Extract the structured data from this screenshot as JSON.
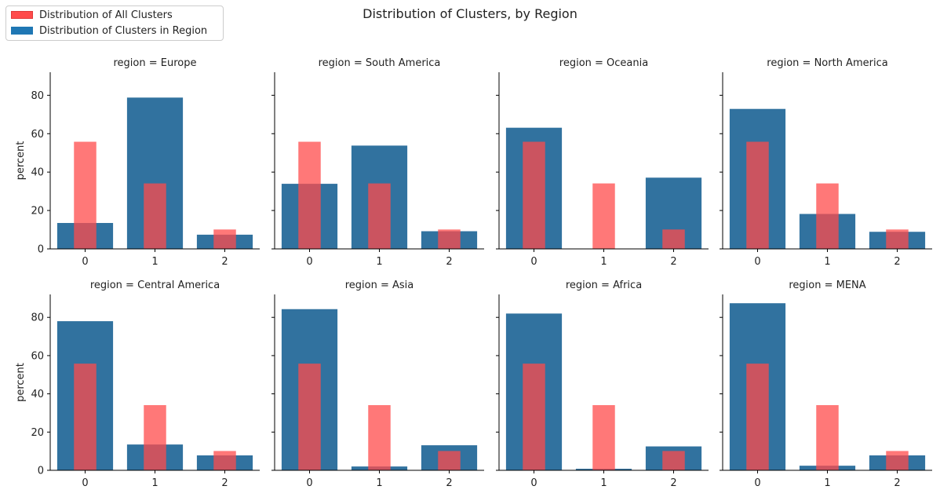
{
  "figure": {
    "title": "Distribution of Clusters, by Region"
  },
  "legend": {
    "items": [
      {
        "label": "Distribution of All Clusters",
        "color": "#ff4b4b"
      },
      {
        "label": "Distribution of Clusters in Region",
        "color": "#1f77b4"
      }
    ]
  },
  "colors": {
    "all_clusters": "#ff4b4b",
    "region_clusters": "#31729f"
  },
  "chart_data": [
    {
      "type": "bar",
      "title": "region = Europe",
      "xlabel": "",
      "ylabel": "percent",
      "categories": [
        "0",
        "1",
        "2"
      ],
      "ylim": [
        0,
        92
      ],
      "yticks": [
        0,
        20,
        40,
        60,
        80
      ],
      "series": [
        {
          "name": "Distribution of Clusters in Region",
          "values": [
            13.5,
            78.8,
            7.4
          ]
        },
        {
          "name": "Distribution of All Clusters",
          "values": [
            55.8,
            34.1,
            10.1
          ]
        }
      ]
    },
    {
      "type": "bar",
      "title": "region = South America",
      "xlabel": "",
      "ylabel": "",
      "categories": [
        "0",
        "1",
        "2"
      ],
      "ylim": [
        0,
        92
      ],
      "yticks": [
        0,
        20,
        40,
        60,
        80
      ],
      "series": [
        {
          "name": "Distribution of Clusters in Region",
          "values": [
            33.9,
            53.8,
            9.2
          ]
        },
        {
          "name": "Distribution of All Clusters",
          "values": [
            55.8,
            34.1,
            10.1
          ]
        }
      ]
    },
    {
      "type": "bar",
      "title": "region = Oceania",
      "xlabel": "",
      "ylabel": "",
      "categories": [
        "0",
        "1",
        "2"
      ],
      "ylim": [
        0,
        92
      ],
      "yticks": [
        0,
        20,
        40,
        60,
        80
      ],
      "series": [
        {
          "name": "Distribution of Clusters in Region",
          "values": [
            63.1,
            0,
            37.1
          ]
        },
        {
          "name": "Distribution of All Clusters",
          "values": [
            55.8,
            34.1,
            10.1
          ]
        }
      ]
    },
    {
      "type": "bar",
      "title": "region = North America",
      "xlabel": "",
      "ylabel": "",
      "categories": [
        "0",
        "1",
        "2"
      ],
      "ylim": [
        0,
        92
      ],
      "yticks": [
        0,
        20,
        40,
        60,
        80
      ],
      "series": [
        {
          "name": "Distribution of Clusters in Region",
          "values": [
            72.9,
            18.2,
            8.9
          ]
        },
        {
          "name": "Distribution of All Clusters",
          "values": [
            55.8,
            34.1,
            10.1
          ]
        }
      ]
    },
    {
      "type": "bar",
      "title": "region = Central America",
      "xlabel": "",
      "ylabel": "percent",
      "categories": [
        "0",
        "1",
        "2"
      ],
      "ylim": [
        0,
        92
      ],
      "yticks": [
        0,
        20,
        40,
        60,
        80
      ],
      "series": [
        {
          "name": "Distribution of Clusters in Region",
          "values": [
            78.0,
            13.5,
            7.8
          ]
        },
        {
          "name": "Distribution of All Clusters",
          "values": [
            55.8,
            34.1,
            10.1
          ]
        }
      ]
    },
    {
      "type": "bar",
      "title": "region = Asia",
      "xlabel": "",
      "ylabel": "",
      "categories": [
        "0",
        "1",
        "2"
      ],
      "ylim": [
        0,
        92
      ],
      "yticks": [
        0,
        20,
        40,
        60,
        80
      ],
      "series": [
        {
          "name": "Distribution of Clusters in Region",
          "values": [
            84.3,
            2.0,
            13.1
          ]
        },
        {
          "name": "Distribution of All Clusters",
          "values": [
            55.8,
            34.1,
            10.1
          ]
        }
      ]
    },
    {
      "type": "bar",
      "title": "region = Africa",
      "xlabel": "",
      "ylabel": "",
      "categories": [
        "0",
        "1",
        "2"
      ],
      "ylim": [
        0,
        92
      ],
      "yticks": [
        0,
        20,
        40,
        60,
        80
      ],
      "series": [
        {
          "name": "Distribution of Clusters in Region",
          "values": [
            82.0,
            0.8,
            12.5
          ]
        },
        {
          "name": "Distribution of All Clusters",
          "values": [
            55.8,
            34.1,
            10.1
          ]
        }
      ]
    },
    {
      "type": "bar",
      "title": "region = MENA",
      "xlabel": "",
      "ylabel": "",
      "categories": [
        "0",
        "1",
        "2"
      ],
      "ylim": [
        0,
        92
      ],
      "yticks": [
        0,
        20,
        40,
        60,
        80
      ],
      "series": [
        {
          "name": "Distribution of Clusters in Region",
          "values": [
            87.4,
            2.4,
            7.8
          ]
        },
        {
          "name": "Distribution of All Clusters",
          "values": [
            55.8,
            34.1,
            10.1
          ]
        }
      ]
    }
  ]
}
